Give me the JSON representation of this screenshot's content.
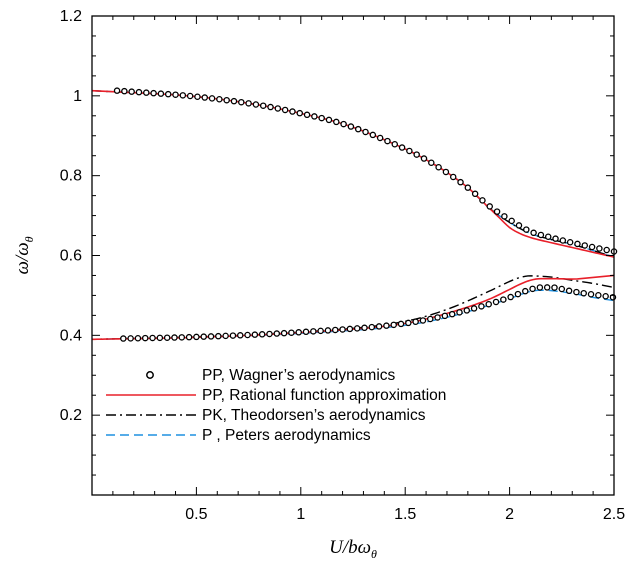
{
  "chart_data": {
    "type": "line",
    "xlabel": "U/bω",
    "xlabel_sub": "θ",
    "ylabel": "ω/ω",
    "ylabel_sub": "θ",
    "xlim": [
      0,
      2.5
    ],
    "ylim": [
      0,
      1.2
    ],
    "x_ticks": [
      0.5,
      1,
      1.5,
      2,
      2.5
    ],
    "x_tick_labels": [
      "0.5",
      "1",
      "1.5",
      "2",
      "2.5"
    ],
    "y_ticks": [
      0.2,
      0.4,
      0.6,
      0.8,
      1.0,
      1.2
    ],
    "y_tick_labels": [
      "0.2",
      "0.4",
      "0.6",
      "0.8",
      "1",
      "1.2"
    ],
    "grid": false,
    "legend_position": "bottom-left",
    "legend": [
      {
        "label": "PP,  Wagner’s aerodynamics",
        "style": "markers",
        "color": "#000000"
      },
      {
        "label": "PP,  Rational function approximation",
        "style": "solid",
        "color": "#e8202a"
      },
      {
        "label": "PK, Theodorsen’s aerodynamics",
        "style": "dashdot",
        "color": "#000000"
      },
      {
        "label": "P  ,  Peters aerodynamics",
        "style": "dashed",
        "color": "#1e90e0"
      }
    ],
    "series": [
      {
        "name": "PP,  Wagner’s aerodynamics",
        "branch": "upper",
        "style": "markers",
        "color": "#000000",
        "x": [
          0.12,
          0.5,
          0.8,
          1.0,
          1.2,
          1.4,
          1.6,
          1.8,
          1.9,
          2.0,
          2.1,
          2.2,
          2.3,
          2.5
        ],
        "y": [
          1.013,
          0.998,
          0.977,
          0.956,
          0.93,
          0.89,
          0.84,
          0.77,
          0.725,
          0.69,
          0.66,
          0.645,
          0.632,
          0.61
        ]
      },
      {
        "name": "PP,  Wagner’s aerodynamics",
        "branch": "lower",
        "style": "markers",
        "color": "#000000",
        "x": [
          0.15,
          0.5,
          1.0,
          1.5,
          1.7,
          1.9,
          2.0,
          2.1,
          2.15,
          2.2,
          2.3,
          2.5
        ],
        "y": [
          0.392,
          0.396,
          0.408,
          0.43,
          0.45,
          0.478,
          0.495,
          0.515,
          0.52,
          0.52,
          0.51,
          0.495
        ]
      },
      {
        "name": "PP,  Rational function approximation",
        "branch": "upper",
        "style": "solid",
        "color": "#e8202a",
        "x": [
          0.0,
          0.5,
          0.8,
          1.0,
          1.2,
          1.4,
          1.6,
          1.8,
          1.9,
          1.95,
          2.0,
          2.05,
          2.1,
          2.2,
          2.3,
          2.4,
          2.5
        ],
        "y": [
          1.013,
          0.998,
          0.977,
          0.956,
          0.93,
          0.89,
          0.84,
          0.77,
          0.72,
          0.695,
          0.67,
          0.655,
          0.645,
          0.632,
          0.62,
          0.608,
          0.596
        ]
      },
      {
        "name": "PP,  Rational function approximation",
        "branch": "lower",
        "style": "solid",
        "color": "#e8202a",
        "x": [
          0.0,
          0.5,
          1.0,
          1.5,
          1.7,
          1.9,
          2.0,
          2.05,
          2.1,
          2.15,
          2.2,
          2.3,
          2.4,
          2.5
        ],
        "y": [
          0.39,
          0.395,
          0.407,
          0.43,
          0.455,
          0.49,
          0.515,
          0.528,
          0.538,
          0.542,
          0.542,
          0.541,
          0.545,
          0.55
        ]
      },
      {
        "name": "PK, Theodorsen’s aerodynamics",
        "branch": "upper",
        "style": "dashdot",
        "color": "#000000",
        "x": [
          0.0,
          0.5,
          0.8,
          1.0,
          1.2,
          1.4,
          1.6,
          1.8,
          1.9,
          2.0,
          2.1,
          2.2,
          2.3,
          2.5
        ],
        "y": [
          1.013,
          0.998,
          0.977,
          0.956,
          0.93,
          0.89,
          0.84,
          0.77,
          0.72,
          0.683,
          0.655,
          0.64,
          0.628,
          0.596
        ]
      },
      {
        "name": "PK, Theodorsen’s aerodynamics",
        "branch": "lower",
        "style": "dashdot",
        "color": "#000000",
        "x": [
          0.0,
          0.5,
          1.0,
          1.5,
          1.7,
          1.9,
          2.0,
          2.05,
          2.1,
          2.15,
          2.2,
          2.3,
          2.4,
          2.5
        ],
        "y": [
          0.39,
          0.396,
          0.408,
          0.435,
          0.465,
          0.51,
          0.535,
          0.545,
          0.549,
          0.548,
          0.546,
          0.538,
          0.53,
          0.52
        ]
      },
      {
        "name": "P  ,  Peters aerodynamics",
        "branch": "upper",
        "style": "dashed",
        "color": "#1e90e0",
        "x": [
          0.0,
          0.5,
          0.8,
          1.0,
          1.2,
          1.4,
          1.6,
          1.8,
          1.9,
          2.0,
          2.1,
          2.2,
          2.3,
          2.5
        ],
        "y": [
          1.013,
          0.998,
          0.977,
          0.956,
          0.93,
          0.89,
          0.84,
          0.77,
          0.72,
          0.683,
          0.655,
          0.64,
          0.628,
          0.596
        ]
      },
      {
        "name": "P  ,  Peters aerodynamics",
        "branch": "lower",
        "style": "dashed",
        "color": "#1e90e0",
        "x": [
          0.0,
          0.5,
          1.0,
          1.5,
          1.7,
          1.9,
          2.0,
          2.1,
          2.15,
          2.2,
          2.3,
          2.4,
          2.5
        ],
        "y": [
          0.39,
          0.395,
          0.405,
          0.425,
          0.445,
          0.475,
          0.492,
          0.51,
          0.513,
          0.512,
          0.505,
          0.495,
          0.487
        ]
      }
    ]
  }
}
